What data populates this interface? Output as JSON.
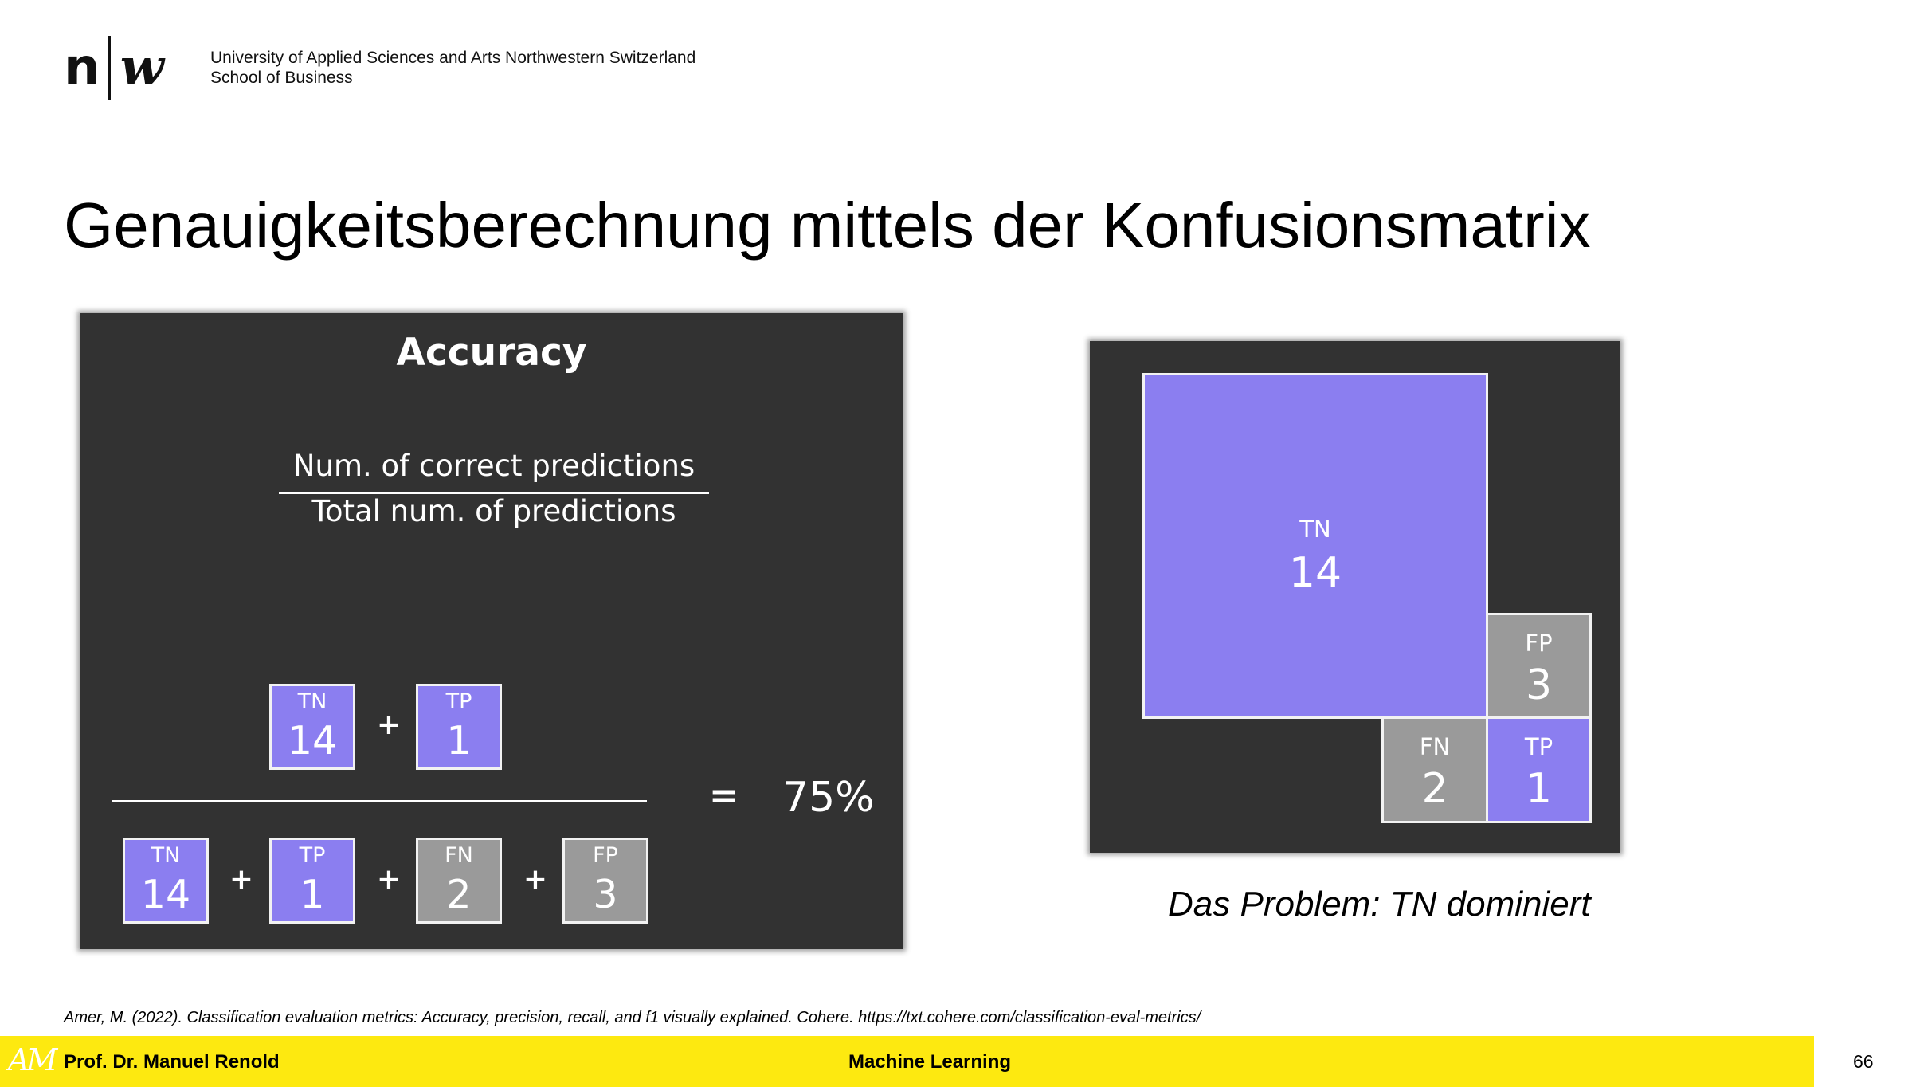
{
  "header": {
    "logo_n": "n",
    "logo_w": "w",
    "institution_line1": "University of Applied Sciences and Arts Northwestern Switzerland",
    "institution_line2": "School of Business"
  },
  "slide": {
    "title": "Genauigkeitsberechnung mittels der Konfusionsmatrix"
  },
  "accuracy_panel": {
    "heading": "Accuracy",
    "numerator_text": "Num. of correct predictions",
    "denominator_text": "Total num. of predictions",
    "numerator_boxes": [
      {
        "label": "TN",
        "value": "14",
        "color": "purple"
      },
      {
        "label": "TP",
        "value": "1",
        "color": "purple"
      }
    ],
    "denominator_boxes": [
      {
        "label": "TN",
        "value": "14",
        "color": "purple"
      },
      {
        "label": "TP",
        "value": "1",
        "color": "purple"
      },
      {
        "label": "FN",
        "value": "2",
        "color": "gray"
      },
      {
        "label": "FP",
        "value": "3",
        "color": "gray"
      }
    ],
    "plus": "+",
    "equals": "=",
    "result": "75%"
  },
  "matrix_panel": {
    "tn": {
      "label": "TN",
      "value": "14"
    },
    "fp": {
      "label": "FP",
      "value": "3"
    },
    "fn": {
      "label": "FN",
      "value": "2"
    },
    "tp": {
      "label": "TP",
      "value": "1"
    },
    "caption": "Das Problem: TN dominiert"
  },
  "reference": "Amer, M. (2022). Classification evaluation metrics: Accuracy, precision, recall, and f1 visually explained. Cohere. https://txt.cohere.com/classification-eval-metrics/",
  "footer": {
    "monogram": "AM",
    "author": "Prof. Dr. Manuel Renold",
    "course": "Machine Learning",
    "page_number": "66"
  },
  "colors": {
    "panel": "#323232",
    "purple": "#8b7ef0",
    "gray": "#9a9a9a",
    "footer": "#fde910"
  }
}
